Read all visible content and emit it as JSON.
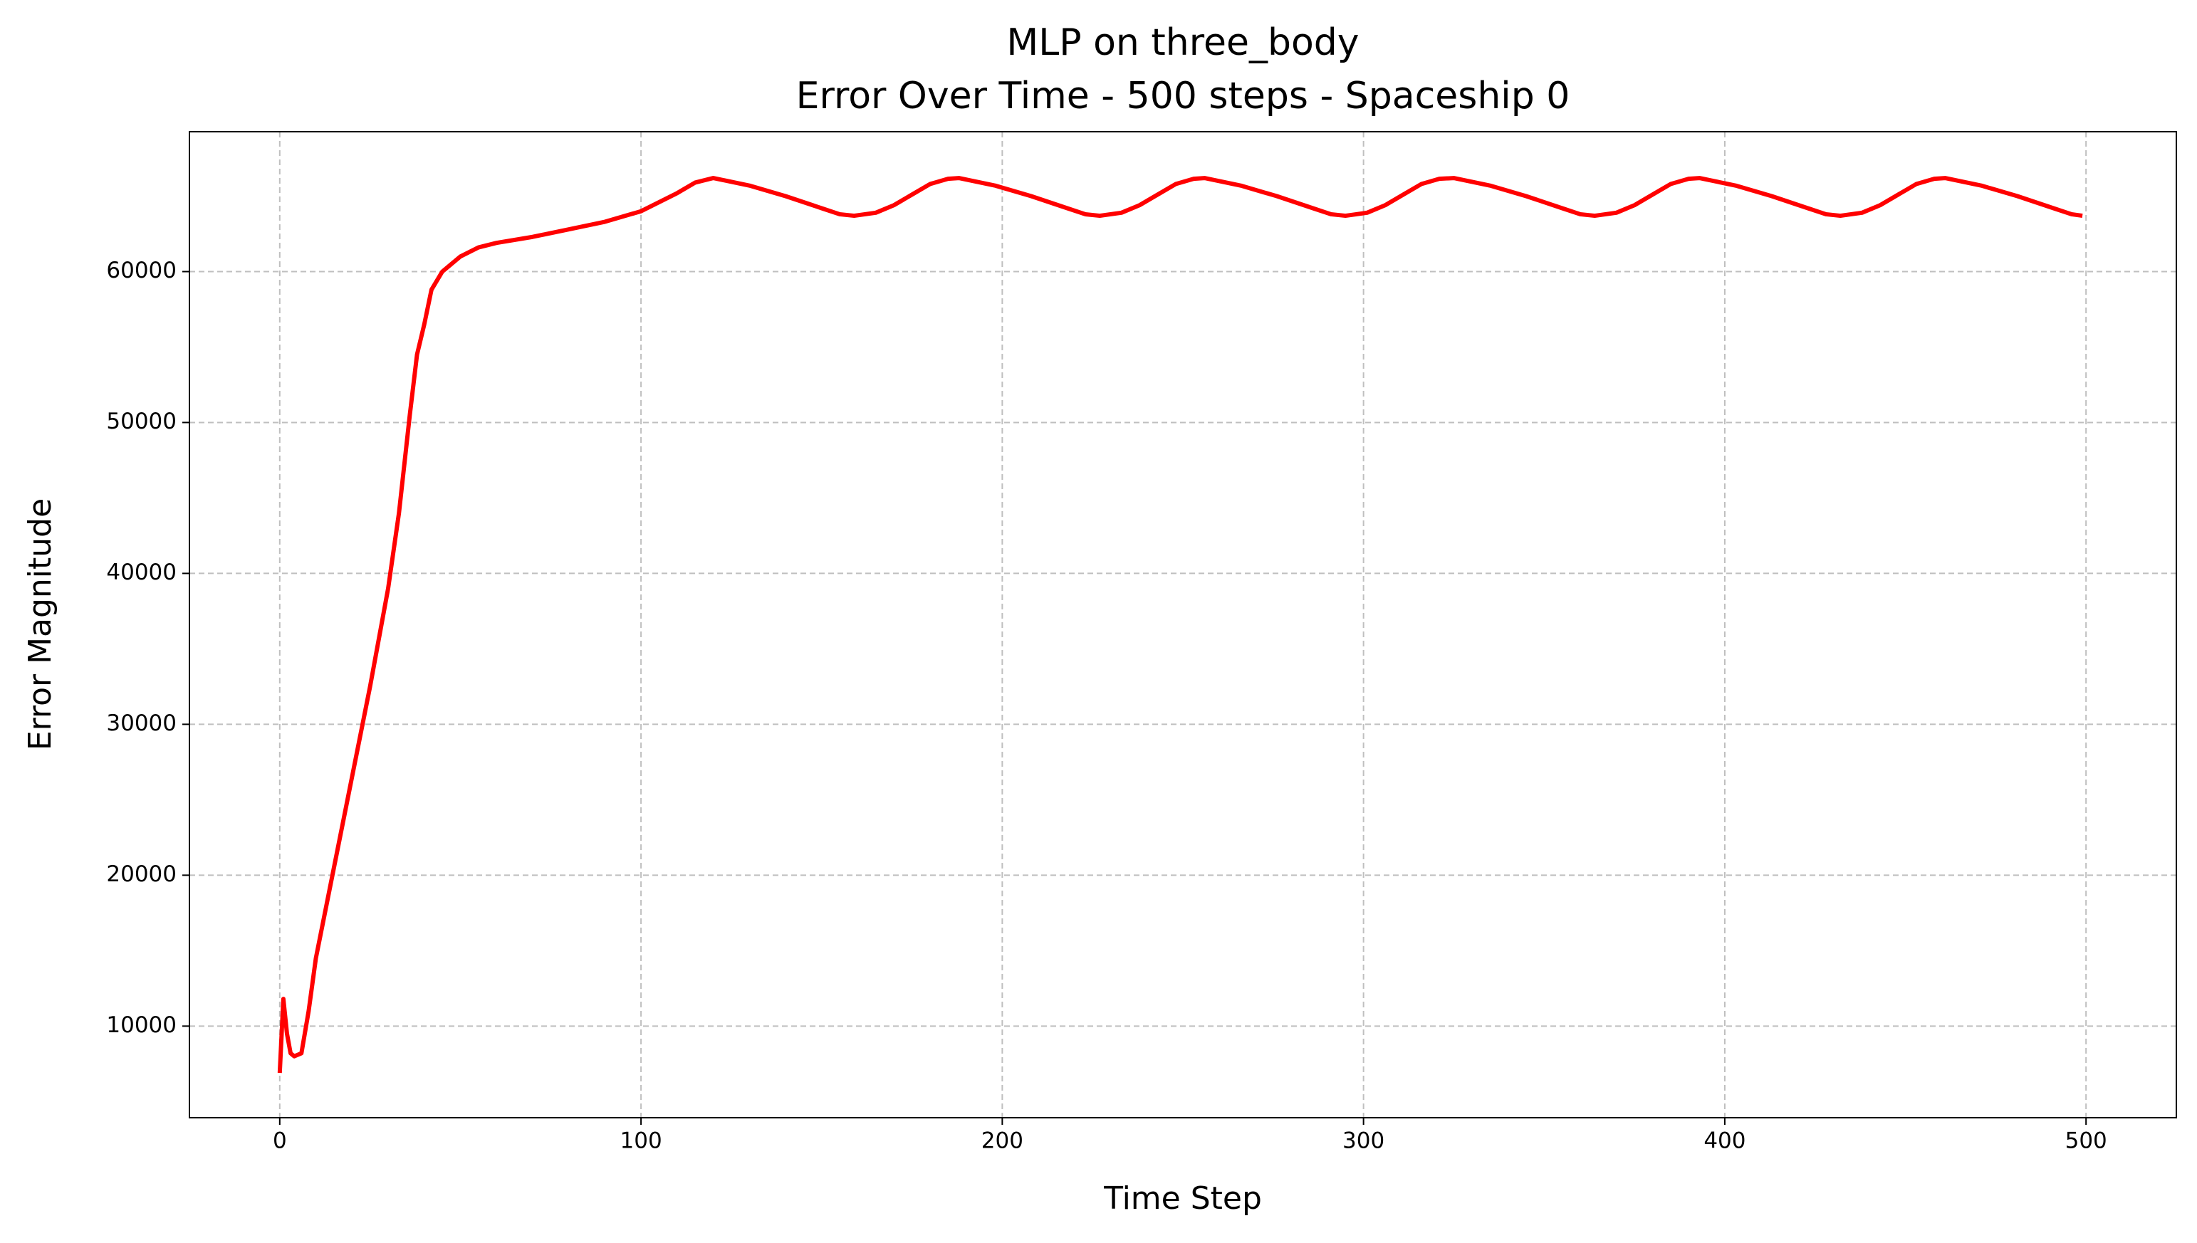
{
  "chart_data": {
    "type": "line",
    "title": "MLP on three_body",
    "subtitle": "Error Over Time - 500 steps - Spaceship 0",
    "x_label": "Time Step",
    "y_label": "Error Magnitude",
    "xlim": [
      -25,
      525
    ],
    "xticks": [
      0,
      100,
      200,
      300,
      400,
      500
    ],
    "ylim": [
      3930,
      69270
    ],
    "yticks": [
      10000,
      20000,
      30000,
      40000,
      50000,
      60000
    ],
    "grid": true,
    "series": [
      {
        "color": "#ff0000",
        "x": [
          0,
          1,
          2,
          3,
          4,
          5,
          6,
          8,
          10,
          15,
          20,
          25,
          30,
          33,
          36,
          38,
          40,
          42,
          45,
          50,
          55,
          60,
          70,
          80,
          90,
          100,
          110,
          115,
          120,
          130,
          140,
          150,
          155,
          159,
          165,
          170,
          175,
          180,
          185,
          188,
          198,
          208,
          218,
          223,
          227,
          233,
          238,
          243,
          248,
          253,
          256,
          266,
          276,
          286,
          291,
          295,
          301,
          306,
          311,
          316,
          321,
          325,
          335,
          345,
          355,
          360,
          364,
          370,
          375,
          380,
          385,
          390,
          393,
          403,
          413,
          423,
          428,
          432,
          438,
          443,
          448,
          453,
          458,
          461,
          471,
          481,
          491,
          496,
          499
        ],
        "values": [
          6900,
          11800,
          9500,
          8200,
          8000,
          8100,
          8200,
          11000,
          14500,
          20500,
          26500,
          32500,
          39000,
          44000,
          50500,
          54500,
          56500,
          58800,
          60000,
          61000,
          61600,
          61900,
          62300,
          62800,
          63300,
          64000,
          65200,
          65900,
          66200,
          65700,
          65000,
          64200,
          63800,
          63700,
          63900,
          64400,
          65100,
          65800,
          66150,
          66200,
          65700,
          65000,
          64200,
          63800,
          63700,
          63900,
          64400,
          65100,
          65800,
          66150,
          66200,
          65700,
          65000,
          64200,
          63800,
          63700,
          63900,
          64400,
          65100,
          65800,
          66150,
          66200,
          65700,
          65000,
          64200,
          63800,
          63700,
          63900,
          64400,
          65100,
          65800,
          66150,
          66200,
          65700,
          65000,
          64200,
          63800,
          63700,
          63900,
          64400,
          65100,
          65800,
          66150,
          66200,
          65700,
          65000,
          64200,
          63800,
          63700
        ]
      }
    ]
  }
}
